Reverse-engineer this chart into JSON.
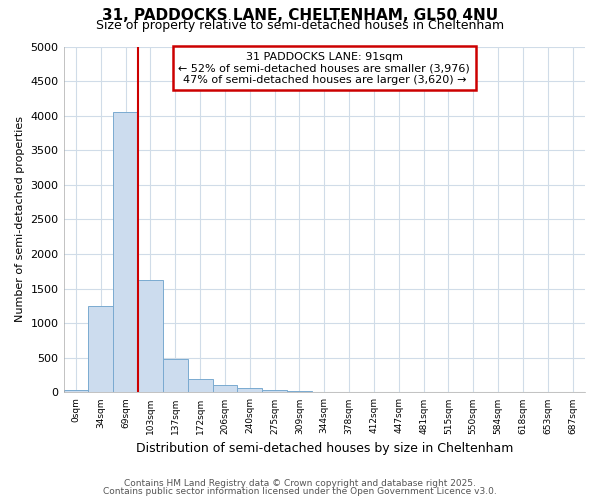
{
  "title_line1": "31, PADDOCKS LANE, CHELTENHAM, GL50 4NU",
  "title_line2": "Size of property relative to semi-detached houses in Cheltenham",
  "xlabel": "Distribution of semi-detached houses by size in Cheltenham",
  "ylabel": "Number of semi-detached properties",
  "bin_labels": [
    "0sqm",
    "34sqm",
    "69sqm",
    "103sqm",
    "137sqm",
    "172sqm",
    "206sqm",
    "240sqm",
    "275sqm",
    "309sqm",
    "344sqm",
    "378sqm",
    "412sqm",
    "447sqm",
    "481sqm",
    "515sqm",
    "550sqm",
    "584sqm",
    "618sqm",
    "653sqm",
    "687sqm"
  ],
  "bar_values": [
    30,
    1250,
    4050,
    1630,
    480,
    200,
    105,
    60,
    30,
    20,
    0,
    0,
    0,
    0,
    0,
    0,
    0,
    0,
    0,
    0,
    0
  ],
  "bar_color": "#ccdcee",
  "bar_edge_color": "#7aaad0",
  "annotation_title": "31 PADDOCKS LANE: 91sqm",
  "annotation_line1": "← 52% of semi-detached houses are smaller (3,976)",
  "annotation_line2": "47% of semi-detached houses are larger (3,620) →",
  "ylim": [
    0,
    5000
  ],
  "yticks": [
    0,
    500,
    1000,
    1500,
    2000,
    2500,
    3000,
    3500,
    4000,
    4500,
    5000
  ],
  "footnote1": "Contains HM Land Registry data © Crown copyright and database right 2025.",
  "footnote2": "Contains public sector information licensed under the Open Government Licence v3.0.",
  "background_color": "#ffffff",
  "grid_color": "#d0dce8",
  "annotation_box_facecolor": "#ffffff",
  "annotation_box_edgecolor": "#cc0000",
  "red_line_color": "#cc0000",
  "red_line_x": 2.5
}
